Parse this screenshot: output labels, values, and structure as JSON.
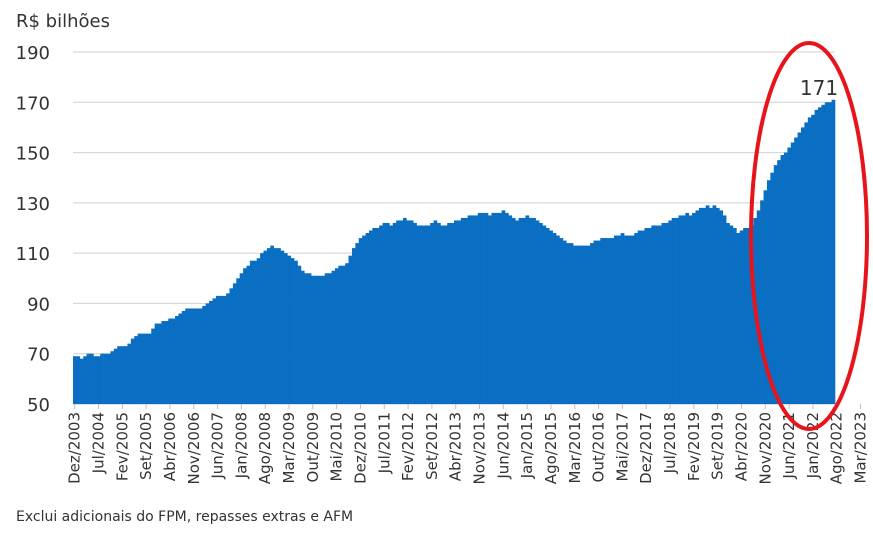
{
  "chart_data": {
    "type": "bar",
    "ylabel": "R$ bilhões",
    "ylim": [
      50,
      190
    ],
    "yticks": [
      50,
      70,
      90,
      110,
      130,
      150,
      170,
      190
    ],
    "grid": true,
    "xtick_labels": [
      "Dez/2003",
      "Jul/2004",
      "Fev/2005",
      "Set/2005",
      "Abr/2006",
      "Nov/2006",
      "Jun/2007",
      "Jan/2008",
      "Ago/2008",
      "Mar/2009",
      "Out/2009",
      "Mai/2010",
      "Dez/2010",
      "Jul/2011",
      "Fev/2012",
      "Set/2012",
      "Abr/2013",
      "Nov/2013",
      "Jun/2014",
      "Jan/2015",
      "Ago/2015",
      "Mar/2016",
      "Out/2016",
      "Mai/2017",
      "Dez/2017",
      "Jul/2018",
      "Fev/2019",
      "Set/2019",
      "Abr/2020",
      "Nov/2020",
      "Jun/2021",
      "Jan/2022",
      "Ago/2022",
      "Mar/2023"
    ],
    "series": [
      {
        "color": "#0a6ec3",
        "start": "Dez/2003",
        "frequency": "monthly",
        "values": [
          69,
          69,
          68,
          69,
          70,
          70,
          69,
          69,
          70,
          70,
          70,
          71,
          72,
          73,
          73,
          73,
          74,
          76,
          77,
          78,
          78,
          78,
          78,
          80,
          82,
          82,
          83,
          83,
          84,
          84,
          85,
          86,
          87,
          88,
          88,
          88,
          88,
          88,
          89,
          90,
          91,
          92,
          93,
          93,
          93,
          94,
          96,
          98,
          100,
          102,
          104,
          105,
          107,
          107,
          108,
          110,
          111,
          112,
          113,
          112,
          112,
          111,
          110,
          109,
          108,
          107,
          105,
          103,
          102,
          102,
          101,
          101,
          101,
          101,
          102,
          102,
          103,
          104,
          105,
          105,
          106,
          109,
          112,
          114,
          116,
          117,
          118,
          119,
          120,
          120,
          121,
          122,
          122,
          121,
          122,
          123,
          123,
          124,
          123,
          123,
          122,
          121,
          121,
          121,
          121,
          122,
          123,
          122,
          121,
          121,
          122,
          122,
          123,
          123,
          124,
          124,
          125,
          125,
          125,
          126,
          126,
          126,
          125,
          126,
          126,
          126,
          127,
          126,
          125,
          124,
          123,
          124,
          124,
          125,
          124,
          124,
          123,
          122,
          121,
          120,
          119,
          118,
          117,
          116,
          115,
          114,
          114,
          113,
          113,
          113,
          113,
          113,
          114,
          115,
          115,
          116,
          116,
          116,
          116,
          117,
          117,
          118,
          117,
          117,
          117,
          118,
          119,
          119,
          120,
          120,
          121,
          121,
          121,
          122,
          122,
          123,
          124,
          124,
          125,
          125,
          126,
          125,
          126,
          127,
          128,
          128,
          129,
          128,
          129,
          128,
          127,
          125,
          122,
          121,
          120,
          118,
          119,
          120,
          120,
          121,
          124,
          127,
          131,
          135,
          139,
          142,
          145,
          147,
          149,
          150,
          152,
          154,
          156,
          158,
          160,
          162,
          164,
          165,
          167,
          168,
          169,
          170,
          170,
          171
        ]
      }
    ],
    "annotation": "171"
  },
  "footnote": "Exclui adicionais do FPM, repasses extras e AFM"
}
